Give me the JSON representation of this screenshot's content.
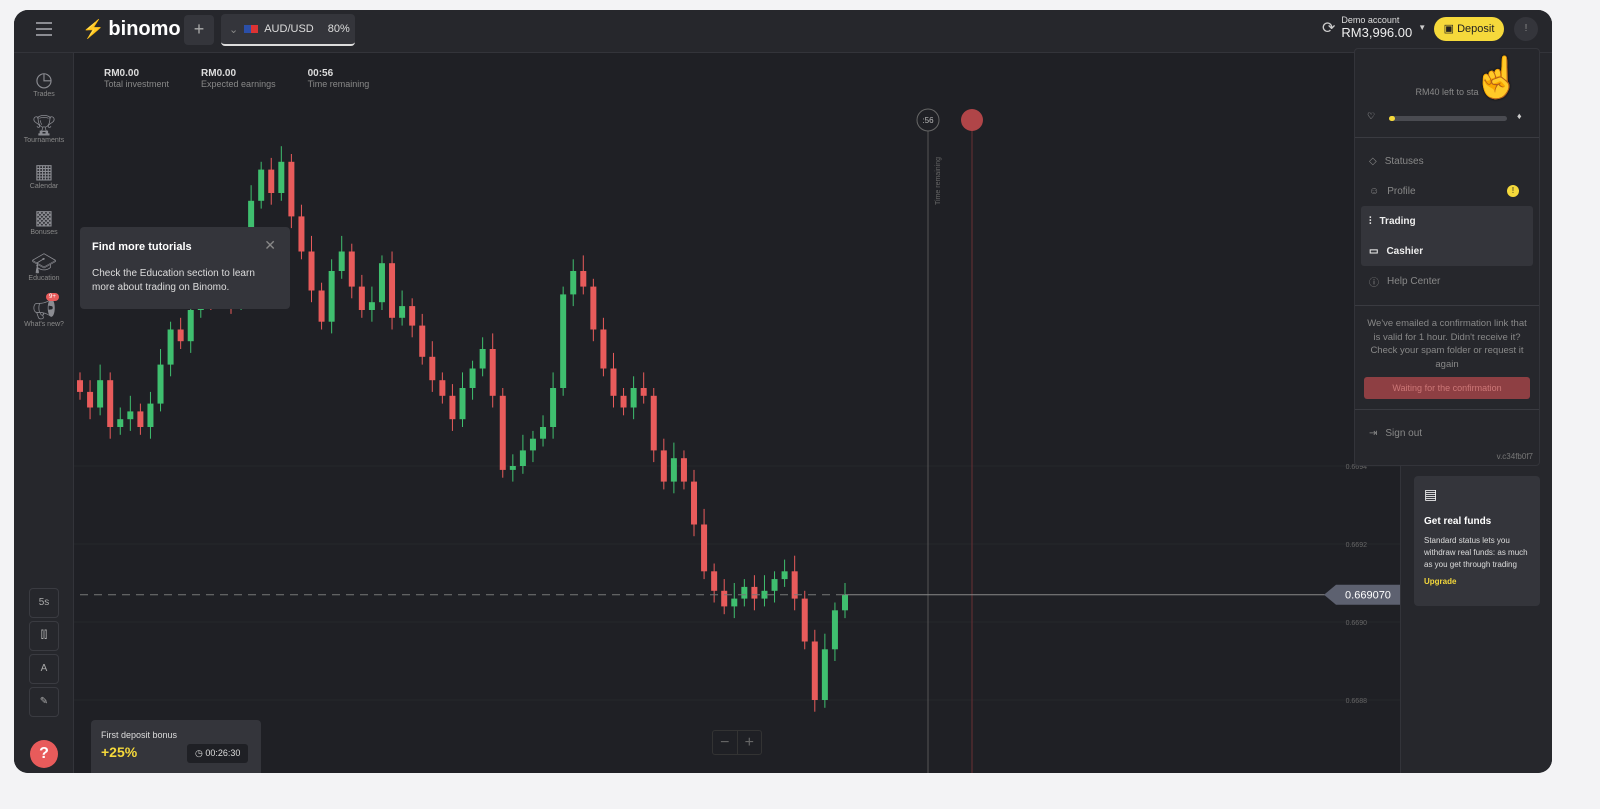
{
  "header": {
    "logo": "binomo",
    "add": "+",
    "asset": "AUD/USD",
    "payout": "80%",
    "account_label": "Demo account",
    "balance": "RM3,996.00",
    "deposit": "Deposit",
    "avatar": "!"
  },
  "sidebar": {
    "items": [
      {
        "label": "Trades",
        "icon": "clock-icon"
      },
      {
        "label": "Tournaments",
        "icon": "trophy-icon"
      },
      {
        "label": "Calendar",
        "icon": "calendar-icon"
      },
      {
        "label": "Bonuses",
        "icon": "gift-icon"
      },
      {
        "label": "Education",
        "icon": "graduation-cap-icon"
      },
      {
        "label": "What's new?",
        "icon": "megaphone-icon",
        "badge": "9+"
      }
    ],
    "tools": [
      "5s",
      "candles",
      "A",
      "pencil"
    ]
  },
  "stats": [
    {
      "value": "RM0.00",
      "label": "Total investment"
    },
    {
      "value": "RM0.00",
      "label": "Expected earnings"
    },
    {
      "value": "00:56",
      "label": "Time remaining"
    }
  ],
  "tooltip": {
    "title": "Find more tutorials",
    "body": "Check the Education section to learn more about trading on Binomo."
  },
  "bonus": {
    "title": "First deposit bonus",
    "percent": "+25%",
    "timer": "00:26:30"
  },
  "chart": {
    "timer_marker": ":56",
    "time_remaining_label": "Time remaining",
    "current_price": "0.669070",
    "price_ticks": [
      "0.6694",
      "0.6692",
      "0.6690",
      "0.6688"
    ],
    "closes": [
      0.66959,
      0.66955,
      0.66962,
      0.6695,
      0.66952,
      0.66954,
      0.6695,
      0.66956,
      0.66966,
      0.66975,
      0.66972,
      0.6698,
      0.66985,
      0.66983,
      0.66986,
      0.66982,
      0.66984,
      0.67008,
      0.67016,
      0.6701,
      0.67018,
      0.67004,
      0.66995,
      0.66985,
      0.66977,
      0.6699,
      0.66995,
      0.66986,
      0.6698,
      0.66982,
      0.66992,
      0.66978,
      0.66981,
      0.66976,
      0.66968,
      0.66962,
      0.66958,
      0.66952,
      0.6696,
      0.66965,
      0.6697,
      0.66958,
      0.66939,
      0.6694,
      0.66944,
      0.66947,
      0.6695,
      0.6696,
      0.66984,
      0.6699,
      0.66986,
      0.66975,
      0.66965,
      0.66958,
      0.66955,
      0.6696,
      0.66958,
      0.66944,
      0.66936,
      0.66942,
      0.66936,
      0.66925,
      0.66913,
      0.66908,
      0.66904,
      0.66906,
      0.66909,
      0.66906,
      0.66908,
      0.66911,
      0.66913,
      0.66906,
      0.66895,
      0.6688,
      0.66893,
      0.66903,
      0.66907
    ],
    "colors": {
      "up": "#3fbf6f",
      "down": "#e85b5b"
    }
  },
  "dropdown": {
    "progress_text": "RM40 left to sta",
    "progress": 0.05,
    "items": [
      {
        "label": "Statuses",
        "icon": "diamond-icon"
      },
      {
        "label": "Profile",
        "icon": "user-icon",
        "alert": "!"
      },
      {
        "label": "Trading",
        "icon": "chart-icon",
        "active": true
      },
      {
        "label": "Cashier",
        "icon": "wallet-icon",
        "active": true
      },
      {
        "label": "Help Center",
        "icon": "info-icon"
      }
    ],
    "message": "We've emailed a confirmation link that is valid for 1 hour. Didn't receive it? Check your spam folder or request it again",
    "waiting": "Waiting for the confirmation",
    "sign_out": "Sign out",
    "version": "v.c34fb0f7"
  },
  "funds": {
    "title": "Get real funds",
    "body": "Standard status lets you withdraw real funds: as much as you get through trading",
    "upgrade": "Upgrade"
  }
}
